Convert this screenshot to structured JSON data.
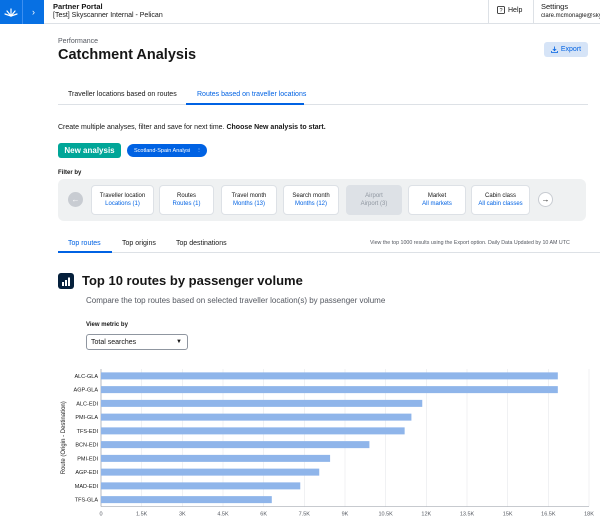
{
  "header": {
    "portal_title": "Partner Portal",
    "portal_subtitle": "[Test] Skyscanner Internal - Pelican",
    "help_label": "Help",
    "settings_label": "Settings",
    "user_email": "clare.mcmonagle@skyscanner.net"
  },
  "page": {
    "breadcrumb": "Performance",
    "title": "Catchment Analysis",
    "export_label": "Export"
  },
  "main_tabs": [
    {
      "label": "Traveller locations based on routes",
      "active": false
    },
    {
      "label": "Routes based on traveller locations",
      "active": true
    }
  ],
  "instructions": {
    "text": "Create multiple analyses, filter and save for next time. ",
    "bold": "Choose New analysis to start."
  },
  "actions": {
    "new_analysis": "New analysis",
    "saved_analysis": "Scotland-Spain Analysi"
  },
  "filters": {
    "label": "Filter by",
    "cards": [
      {
        "title": "Traveller location",
        "value": "Locations (1)",
        "disabled": false
      },
      {
        "title": "Routes",
        "value": "Routes (1)",
        "disabled": false
      },
      {
        "title": "Travel month",
        "value": "Months (13)",
        "disabled": false
      },
      {
        "title": "Search month",
        "value": "Months (12)",
        "disabled": false
      },
      {
        "title": "Airport",
        "value": "Airport (3)",
        "disabled": true
      },
      {
        "title": "Market",
        "value": "All markets",
        "disabled": false
      },
      {
        "title": "Cabin class",
        "value": "All cabin classes",
        "disabled": false
      }
    ]
  },
  "sub_tabs": [
    {
      "label": "Top routes",
      "active": true
    },
    {
      "label": "Top origins",
      "active": false
    },
    {
      "label": "Top destinations",
      "active": false
    }
  ],
  "sub_note": "View the top 1000 results using the Export option. Daily Data Updated by 10 AM UTC",
  "section": {
    "title": "Top 10 routes by passenger volume",
    "subtitle": "Compare the top routes based on selected traveller location(s) by passenger volume",
    "metric_label": "View metric by",
    "metric_value": "Total searches"
  },
  "colors": {
    "accent": "#0062e3",
    "primary_button": "#00a698",
    "bar": "#8fb5ea"
  },
  "chart_data": {
    "type": "bar",
    "orientation": "horizontal",
    "categories": [
      "ALC-GLA",
      "AGP-GLA",
      "ALC-EDI",
      "PMI-GLA",
      "TFS-EDI",
      "BCN-EDI",
      "PMI-EDI",
      "AGP-EDI",
      "MAD-EDI",
      "TFS-GLA"
    ],
    "values": [
      16850,
      16850,
      11850,
      11450,
      11200,
      9900,
      8450,
      8050,
      7350,
      6300
    ],
    "ylabel": "Route (Origin - Destination)",
    "xlim": [
      0,
      18000
    ],
    "xticks": [
      "0",
      "1.5K",
      "3K",
      "4.5K",
      "6K",
      "7.5K",
      "9K",
      "10.5K",
      "12K",
      "13.5K",
      "15K",
      "16.5K",
      "18K"
    ],
    "grid": true
  }
}
